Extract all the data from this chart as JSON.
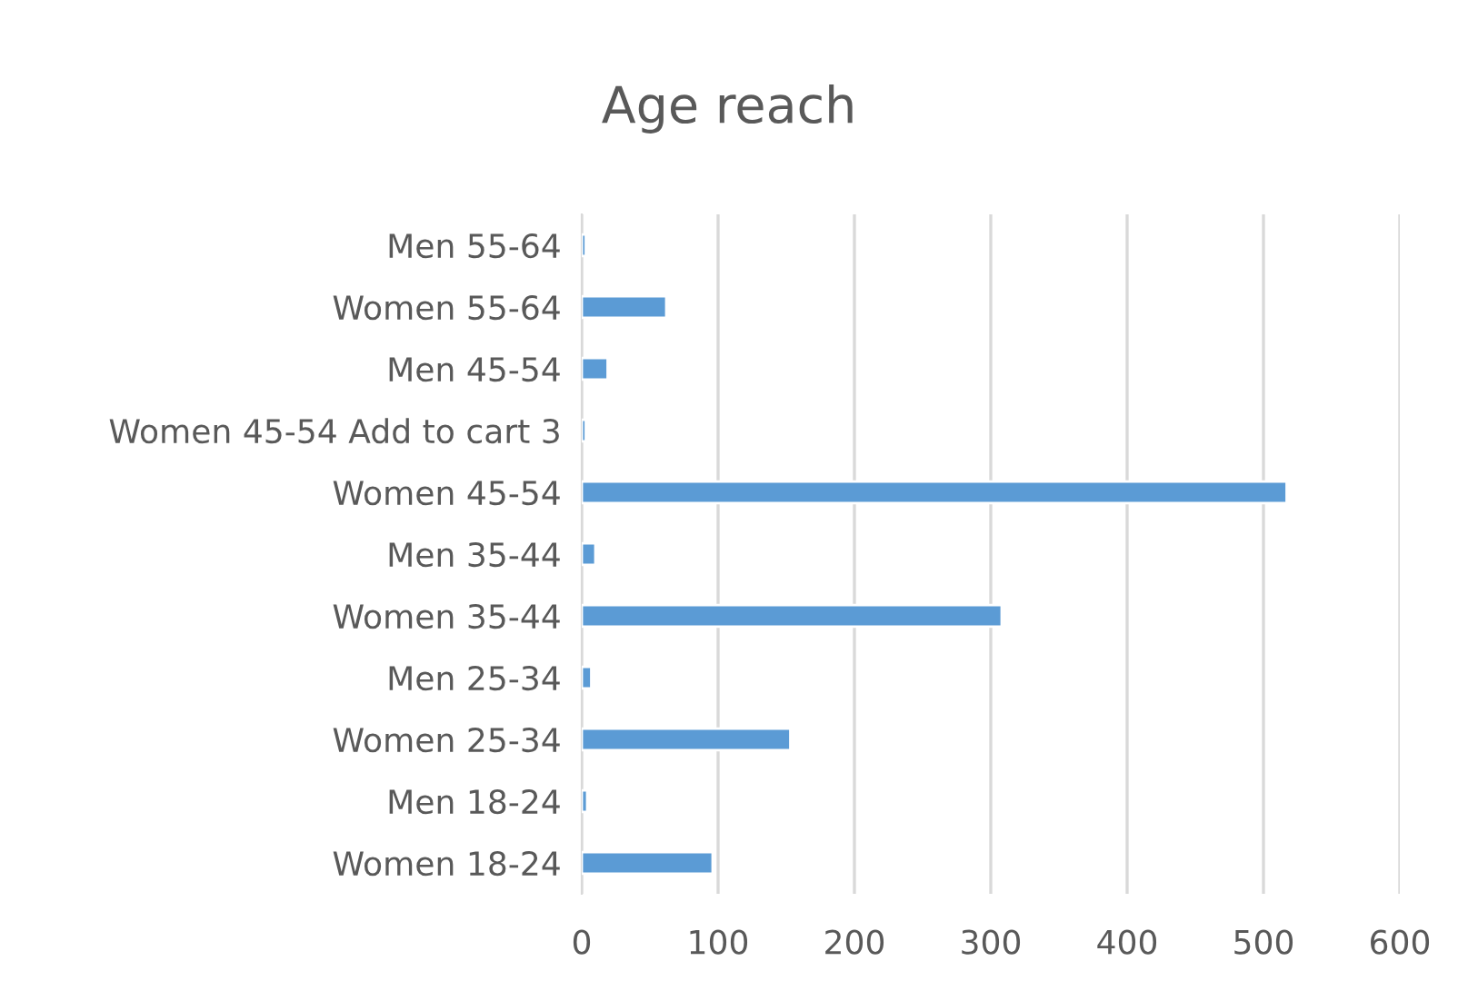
{
  "chart_data": {
    "type": "bar",
    "orientation": "horizontal",
    "title": "Age reach",
    "categories": [
      "Men 55-64",
      "Women 55-64",
      "Men 45-54",
      "Women 45-54 Add to cart 3",
      "Women 45-54",
      "Men 35-44",
      "Women 35-44",
      "Men 25-34",
      "Women 25-34",
      "Men 18-24",
      "Women 18-24"
    ],
    "values": [
      3,
      62,
      19,
      3,
      517,
      10,
      308,
      7,
      153,
      4,
      96
    ],
    "color": "#5b9bd5",
    "xlim": [
      0,
      600
    ],
    "xticks": [
      0,
      100,
      200,
      300,
      400,
      500,
      600
    ],
    "grid": "x",
    "legend": false
  }
}
